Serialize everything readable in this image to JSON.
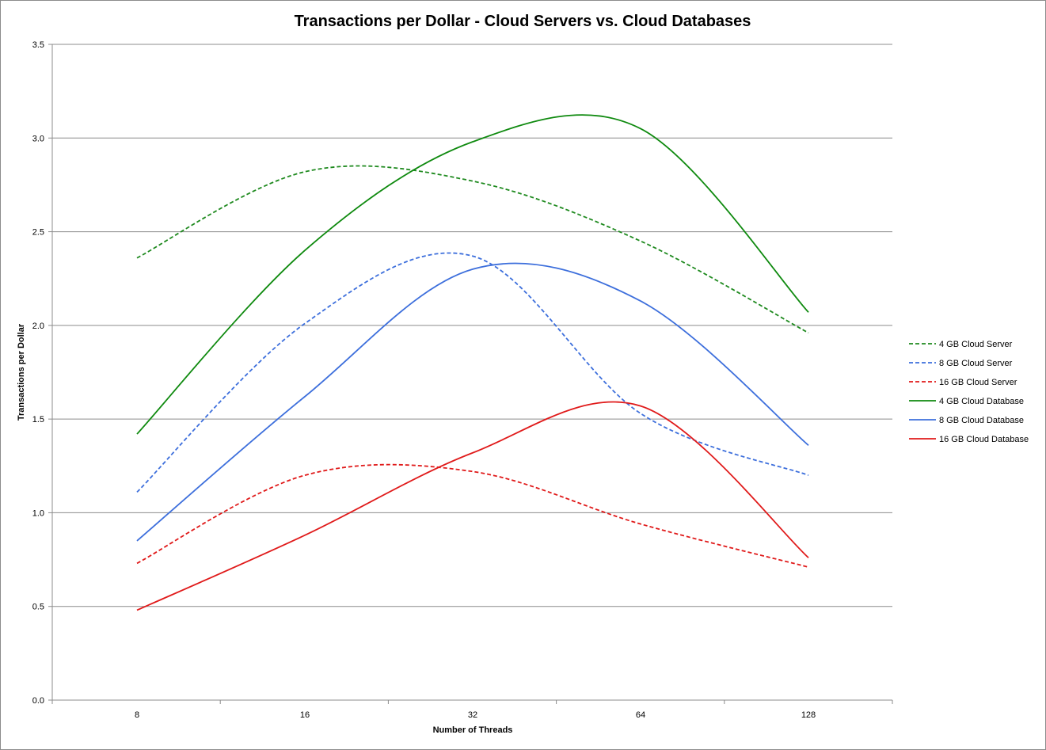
{
  "chart_data": {
    "type": "line",
    "title": "Transactions per Dollar - Cloud Servers vs. Cloud Databases",
    "xlabel": "Number of Threads",
    "ylabel": "Transactions  per Dollar",
    "x_scale": "log2",
    "categories": [
      "8",
      "16",
      "32",
      "64",
      "128"
    ],
    "x": [
      8,
      16,
      32,
      64,
      128
    ],
    "ylim": [
      0,
      3.5
    ],
    "yticks": [
      "0.0",
      "0.5",
      "1.0",
      "1.5",
      "2.0",
      "2.5",
      "3.0",
      "3.5"
    ],
    "grid": "horizontal",
    "legend": "right",
    "series": [
      {
        "name": "4 GB Cloud Server",
        "color": "#1f8a1f",
        "dashed": true,
        "values": [
          2.36,
          2.82,
          2.77,
          2.45,
          1.96
        ]
      },
      {
        "name": "8 GB Cloud Server",
        "color": "#3d6fdc",
        "dashed": true,
        "values": [
          1.11,
          2.01,
          2.37,
          1.53,
          1.2
        ]
      },
      {
        "name": "16 GB Cloud Server",
        "color": "#e01a1a",
        "dashed": true,
        "values": [
          0.73,
          1.2,
          1.22,
          0.94,
          0.71
        ]
      },
      {
        "name": "4 GB Cloud Database",
        "color": "#0f8a0f",
        "dashed": false,
        "values": [
          1.42,
          2.4,
          2.98,
          3.05,
          2.07
        ]
      },
      {
        "name": "8 GB Cloud Database",
        "color": "#3d6fdc",
        "dashed": false,
        "values": [
          0.85,
          1.62,
          2.3,
          2.13,
          1.36
        ]
      },
      {
        "name": "16 GB Cloud Database",
        "color": "#e01a1a",
        "dashed": false,
        "values": [
          0.48,
          0.88,
          1.32,
          1.57,
          0.76
        ]
      }
    ]
  }
}
